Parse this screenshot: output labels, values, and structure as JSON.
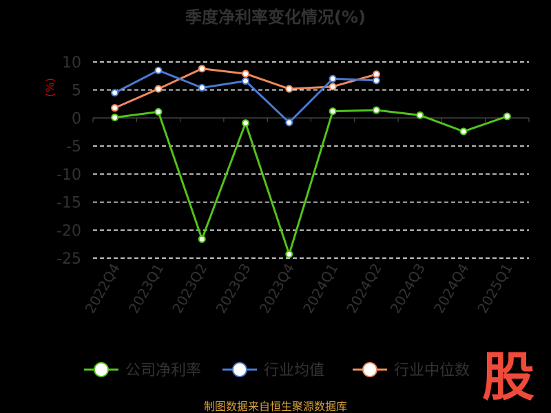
{
  "chart_data": {
    "type": "line",
    "title": "季度净利率变化情况(%)",
    "ylabel": "(%)",
    "xlabel": "",
    "categories": [
      "2022Q4",
      "2023Q1",
      "2023Q2",
      "2023Q3",
      "2023Q4",
      "2024Q1",
      "2024Q2",
      "2024Q3",
      "2024Q4",
      "2025Q1"
    ],
    "yticks": [
      10,
      5,
      0,
      -5,
      -10,
      -15,
      -20,
      -25
    ],
    "ylim": [
      -25,
      10
    ],
    "grid": true,
    "legend_position": "bottom",
    "series": [
      {
        "name": "公司净利率",
        "color": "#52c41a",
        "values": [
          0.1,
          1.1,
          -21.6,
          -0.9,
          -24.3,
          1.2,
          1.4,
          0.5,
          -2.4,
          0.3
        ]
      },
      {
        "name": "行业均值",
        "color": "#4a7bd8",
        "values": [
          4.5,
          8.5,
          5.4,
          6.6,
          -0.8,
          7.0,
          6.7,
          null,
          null,
          null
        ]
      },
      {
        "name": "行业中位数",
        "color": "#f08a5d",
        "values": [
          1.8,
          5.2,
          8.8,
          7.9,
          5.2,
          5.6,
          7.8,
          null,
          null,
          null
        ]
      }
    ]
  },
  "source": "制图数据来自恒生聚源数据库",
  "logo": {
    "text": "股",
    "color": "#f04a3a"
  }
}
